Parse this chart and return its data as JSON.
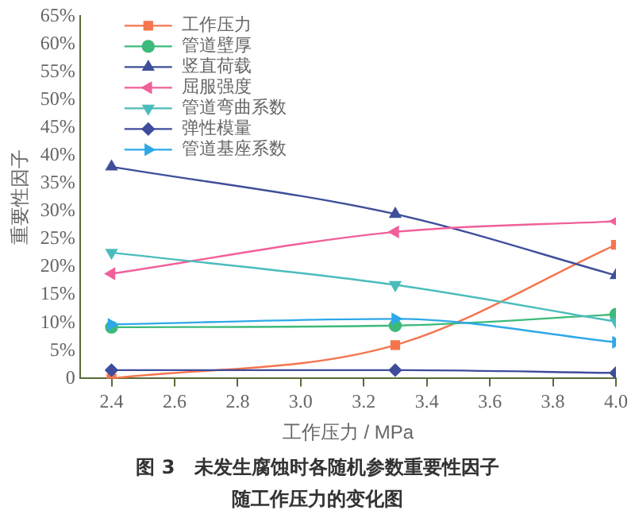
{
  "chart_data": {
    "type": "line",
    "title": "图 3　未发生腐蚀时各随机参数重要性因子随工作压力的变化图",
    "xlabel": "工作压力 / MPa",
    "ylabel": "重要性因子",
    "x": [
      2.4,
      3.3,
      4.0
    ],
    "series": [
      {
        "name": "工作压力",
        "color": "#f4754e",
        "marker": "square",
        "values": [
          0,
          6,
          24
        ]
      },
      {
        "name": "管道壁厚",
        "color": "#3dba7a",
        "marker": "circle",
        "values": [
          9.2,
          9.5,
          11.5
        ]
      },
      {
        "name": "竖直荷载",
        "color": "#3f4f9a",
        "marker": "triangle",
        "values": [
          38,
          29.5,
          18.5
        ]
      },
      {
        "name": "屈服强度",
        "color": "#f0609a",
        "marker": "triangle-left",
        "values": [
          18.8,
          26.3,
          28.2
        ]
      },
      {
        "name": "管道弯曲系数",
        "color": "#4bbcbc",
        "marker": "triangle-down",
        "values": [
          22.6,
          16.8,
          10.2
        ]
      },
      {
        "name": "弹性模量",
        "color": "#3f4c9c",
        "marker": "diamond",
        "values": [
          1.5,
          1.5,
          1
        ]
      },
      {
        "name": "管道基座系数",
        "color": "#2ea8e8",
        "marker": "triangle-right",
        "values": [
          9.7,
          10.7,
          6.5
        ]
      }
    ],
    "xlim": [
      2.3,
      4.0
    ],
    "xticks": [
      2.4,
      2.6,
      2.8,
      {
        "value": 3,
        "label": "3.0"
      },
      3.2,
      3.4,
      3.6,
      3.8,
      {
        "value": 4,
        "label": "4.0"
      }
    ],
    "ylim": [
      0,
      65
    ],
    "yticks": [
      0,
      {
        "value": 5,
        "label": "5%"
      },
      {
        "value": 10,
        "label": "10%"
      },
      {
        "value": 15,
        "label": "15%"
      },
      {
        "value": 20,
        "label": "20%"
      },
      {
        "value": 25,
        "label": "25%"
      },
      {
        "value": 30,
        "label": "30%"
      },
      {
        "value": 35,
        "label": "35%"
      },
      {
        "value": 40,
        "label": "40%"
      },
      {
        "value": 45,
        "label": "45%"
      },
      {
        "value": 50,
        "label": "50%"
      },
      {
        "value": 55,
        "label": "55%"
      },
      {
        "value": 60,
        "label": "60%"
      },
      {
        "value": 65,
        "label": "65%"
      }
    ],
    "grid": false,
    "legend": "top left",
    "line_style": "solid"
  }
}
